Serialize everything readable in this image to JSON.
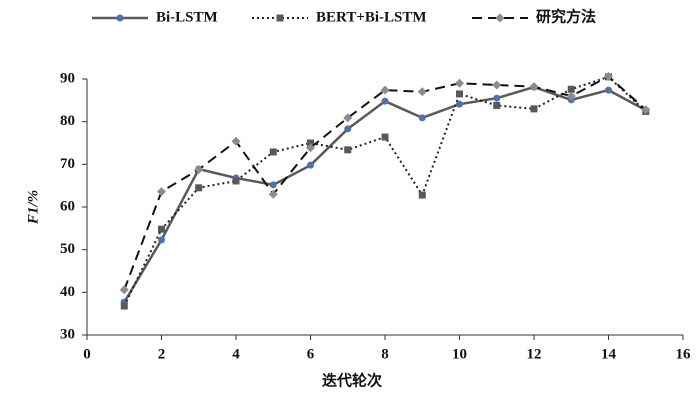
{
  "chart_data": {
    "type": "line",
    "y_label": "F1/%",
    "x_label": "迭代轮次",
    "x": [
      1,
      2,
      3,
      4,
      5,
      6,
      7,
      8,
      9,
      10,
      11,
      12,
      13,
      14,
      15
    ],
    "series": [
      {
        "name": "Bi-LSTM",
        "color": "#595959",
        "marker_color": "#4a72b0",
        "line_style": "solid",
        "marker": "circle",
        "values": [
          37.7,
          52.3,
          68.9,
          66.8,
          65.2,
          69.8,
          78.3,
          84.8,
          80.9,
          84.1,
          85.5,
          88.1,
          85.1,
          87.4,
          82.7
        ]
      },
      {
        "name": "BERT+Bi-LSTM",
        "color": "#222222",
        "marker_color": "#595959",
        "line_style": "dotted",
        "marker": "square",
        "values": [
          36.8,
          54.8,
          64.5,
          66.1,
          72.9,
          75.0,
          73.4,
          76.4,
          62.8,
          86.5,
          83.8,
          83.0,
          87.6,
          90.5,
          82.4
        ]
      },
      {
        "name": "研究方法",
        "color": "#111111",
        "marker_color": "#8c8c8c",
        "line_style": "dashed",
        "marker": "diamond",
        "values": [
          40.6,
          63.6,
          68.8,
          75.4,
          63.0,
          73.9,
          80.9,
          87.4,
          87.0,
          89.0,
          88.6,
          88.2,
          86.0,
          90.6,
          82.8
        ]
      }
    ],
    "xlim": [
      0,
      16
    ],
    "xticks": [
      0,
      2,
      4,
      6,
      8,
      10,
      12,
      14,
      16
    ],
    "ylim": [
      30,
      90
    ],
    "yticks": [
      30,
      40,
      50,
      60,
      70,
      80,
      90
    ],
    "grid": false,
    "legend": "top"
  }
}
